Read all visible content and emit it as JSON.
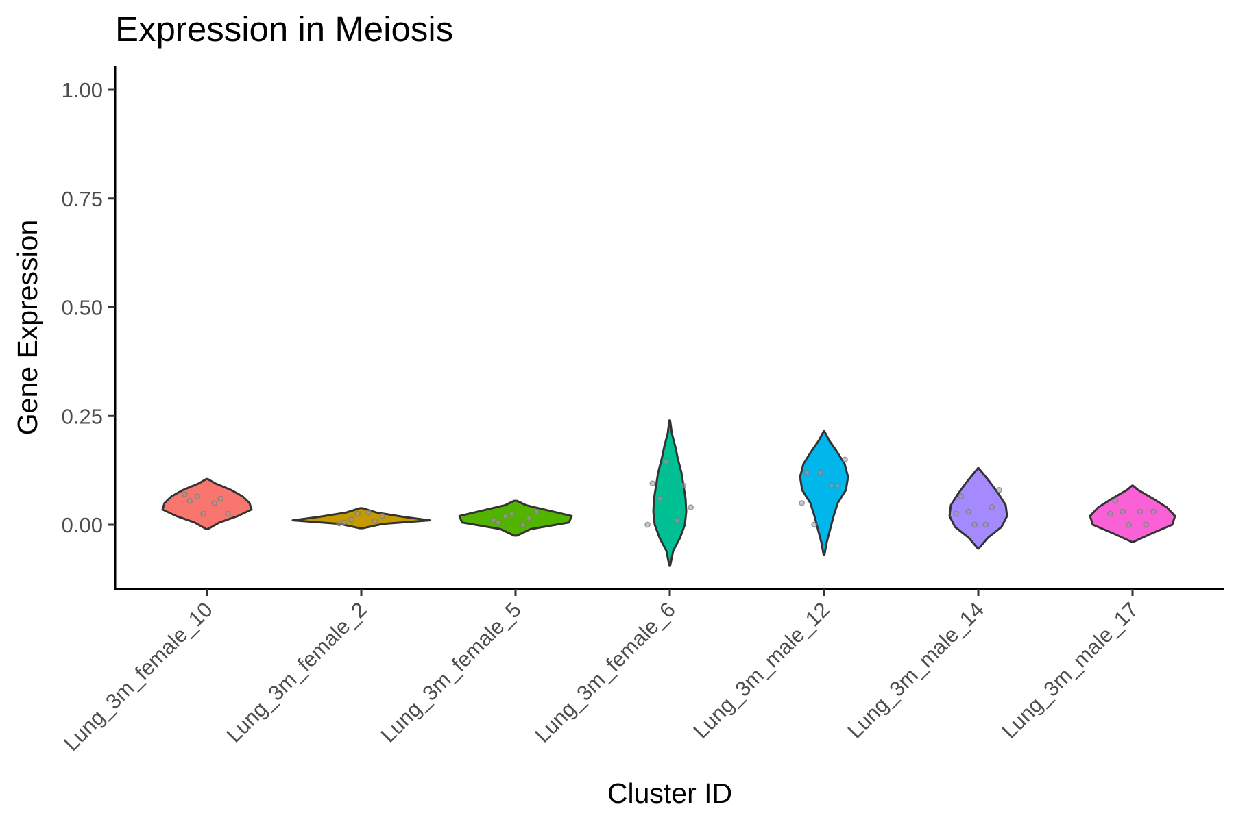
{
  "chart_data": {
    "type": "violin",
    "title": "Expression in Meiosis",
    "xlabel": "Cluster ID",
    "ylabel": "Gene Expression",
    "ylim": [
      -0.15,
      1.05
    ],
    "yticks": [
      0,
      0.25,
      0.5,
      0.75,
      1.0
    ],
    "ytick_labels": [
      "0.00",
      "0.25",
      "0.50",
      "0.75",
      "1.00"
    ],
    "grid": false,
    "legend": "none",
    "categories": [
      "Lung_3m_female_10",
      "Lung_3m_female_2",
      "Lung_3m_female_5",
      "Lung_3m_female_6",
      "Lung_3m_male_12",
      "Lung_3m_male_14",
      "Lung_3m_male_17"
    ],
    "series": [
      {
        "color": "#F8766D",
        "range": [
          -0.01,
          0.105
        ],
        "density": [
          [
            -0.01,
            0.01
          ],
          [
            0.005,
            0.18
          ],
          [
            0.02,
            0.45
          ],
          [
            0.035,
            0.65
          ],
          [
            0.05,
            0.62
          ],
          [
            0.065,
            0.52
          ],
          [
            0.08,
            0.35
          ],
          [
            0.095,
            0.12
          ],
          [
            0.105,
            0.01
          ]
        ],
        "points": [
          0.055,
          0.06,
          0.065,
          0.025,
          0.025,
          0.05,
          0.07
        ]
      },
      {
        "color": "#C49A00",
        "range": [
          -0.008,
          0.038
        ],
        "density": [
          [
            -0.008,
            0.02
          ],
          [
            0.002,
            0.32
          ],
          [
            0.01,
            1.0
          ],
          [
            0.018,
            0.62
          ],
          [
            0.028,
            0.22
          ],
          [
            0.038,
            0.02
          ]
        ],
        "points": [
          0.005,
          0.008,
          0.012,
          0.02,
          0.025,
          0.028,
          0.003
        ]
      },
      {
        "color": "#53B400",
        "range": [
          -0.025,
          0.055
        ],
        "density": [
          [
            -0.025,
            0.02
          ],
          [
            -0.01,
            0.22
          ],
          [
            0.005,
            0.78
          ],
          [
            0.02,
            0.82
          ],
          [
            0.035,
            0.42
          ],
          [
            0.045,
            0.15
          ],
          [
            0.055,
            0.02
          ]
        ],
        "points": [
          0.005,
          0.015,
          0.02,
          0.03,
          0.025,
          0.0,
          0.01
        ]
      },
      {
        "color": "#00C094",
        "range": [
          -0.095,
          0.24
        ],
        "density": [
          [
            -0.095,
            0.005
          ],
          [
            -0.06,
            0.05
          ],
          [
            -0.03,
            0.15
          ],
          [
            0.0,
            0.22
          ],
          [
            0.03,
            0.24
          ],
          [
            0.06,
            0.23
          ],
          [
            0.09,
            0.2
          ],
          [
            0.12,
            0.17
          ],
          [
            0.15,
            0.12
          ],
          [
            0.18,
            0.08
          ],
          [
            0.21,
            0.03
          ],
          [
            0.24,
            0.005
          ]
        ],
        "points": [
          0.095,
          0.09,
          0.06,
          0.04,
          0.145,
          0.01,
          0.0
        ]
      },
      {
        "color": "#00B6EB",
        "range": [
          -0.07,
          0.215
        ],
        "density": [
          [
            -0.07,
            0.005
          ],
          [
            -0.04,
            0.04
          ],
          [
            -0.01,
            0.09
          ],
          [
            0.02,
            0.14
          ],
          [
            0.05,
            0.2
          ],
          [
            0.08,
            0.32
          ],
          [
            0.11,
            0.35
          ],
          [
            0.14,
            0.3
          ],
          [
            0.17,
            0.18
          ],
          [
            0.195,
            0.07
          ],
          [
            0.215,
            0.005
          ]
        ],
        "points": [
          0.12,
          0.09,
          0.0,
          0.15,
          0.12,
          0.09,
          0.05
        ]
      },
      {
        "color": "#A58AFF",
        "range": [
          -0.055,
          0.13
        ],
        "density": [
          [
            -0.055,
            0.005
          ],
          [
            -0.03,
            0.14
          ],
          [
            -0.005,
            0.34
          ],
          [
            0.02,
            0.42
          ],
          [
            0.045,
            0.4
          ],
          [
            0.07,
            0.3
          ],
          [
            0.1,
            0.16
          ],
          [
            0.13,
            0.005
          ]
        ],
        "points": [
          0.065,
          0.04,
          0.03,
          0.08,
          0.0,
          0.0,
          0.025
        ]
      },
      {
        "color": "#FB61D7",
        "range": [
          -0.04,
          0.09
        ],
        "density": [
          [
            -0.04,
            0.005
          ],
          [
            -0.02,
            0.28
          ],
          [
            0.0,
            0.58
          ],
          [
            0.02,
            0.62
          ],
          [
            0.04,
            0.5
          ],
          [
            0.06,
            0.3
          ],
          [
            0.08,
            0.08
          ],
          [
            0.09,
            0.005
          ]
        ],
        "points": [
          0.055,
          0.0,
          0.03,
          0.03,
          0.0,
          0.03,
          0.025
        ]
      }
    ]
  }
}
